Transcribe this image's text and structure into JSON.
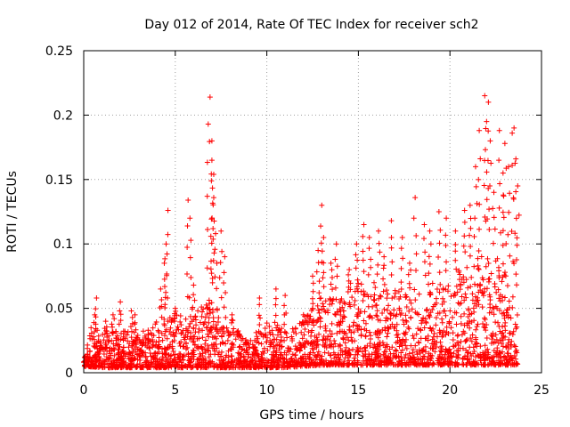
{
  "chart_data": {
    "type": "scatter",
    "title": "Day 012 of 2014, Rate Of TEC Index for receiver sch2",
    "xlabel": "GPS time / hours",
    "ylabel": "ROTI / TECUs",
    "xlim": [
      0,
      25
    ],
    "ylim": [
      0,
      0.25
    ],
    "grid": true,
    "marker": "+",
    "series_color": "#ff0000",
    "xticks": [
      0,
      5,
      10,
      15,
      20,
      25
    ],
    "xtick_labels": [
      "0",
      "5",
      "10",
      "15",
      "20",
      "25"
    ],
    "yticks": [
      0,
      0.05,
      0.1,
      0.15,
      0.2,
      0.25
    ],
    "ytick_labels": [
      "0",
      "0.05",
      "0.1",
      "0.15",
      "0.2",
      "0.25"
    ],
    "data_extent_hours": [
      0,
      23.7
    ],
    "series": [
      {
        "name": "sch2",
        "points": [
          [
            0.4,
            0.035
          ],
          [
            0.6,
            0.045
          ],
          [
            0.7,
            0.058
          ],
          [
            1.2,
            0.04
          ],
          [
            1.6,
            0.045
          ],
          [
            2.0,
            0.055
          ],
          [
            2.6,
            0.048
          ],
          [
            2.8,
            0.045
          ],
          [
            3.5,
            0.025
          ],
          [
            4.2,
            0.065
          ],
          [
            4.4,
            0.085
          ],
          [
            4.5,
            0.1
          ],
          [
            4.6,
            0.126
          ],
          [
            5.0,
            0.05
          ],
          [
            5.7,
            0.134
          ],
          [
            5.8,
            0.12
          ],
          [
            6.0,
            0.068
          ],
          [
            6.8,
            0.193
          ],
          [
            6.9,
            0.214
          ],
          [
            7.0,
            0.18
          ],
          [
            7.0,
            0.165
          ],
          [
            7.1,
            0.154
          ],
          [
            7.1,
            0.136
          ],
          [
            7.2,
            0.108
          ],
          [
            7.5,
            0.11
          ],
          [
            7.7,
            0.09
          ],
          [
            8.1,
            0.045
          ],
          [
            8.5,
            0.03
          ],
          [
            9.6,
            0.058
          ],
          [
            10.5,
            0.065
          ],
          [
            11.0,
            0.06
          ],
          [
            12.0,
            0.045
          ],
          [
            12.5,
            0.075
          ],
          [
            12.8,
            0.095
          ],
          [
            13.0,
            0.13
          ],
          [
            13.1,
            0.105
          ],
          [
            13.5,
            0.085
          ],
          [
            13.8,
            0.1
          ],
          [
            14.5,
            0.08
          ],
          [
            14.9,
            0.1
          ],
          [
            15.3,
            0.115
          ],
          [
            15.6,
            0.105
          ],
          [
            16.1,
            0.11
          ],
          [
            16.4,
            0.09
          ],
          [
            16.8,
            0.118
          ],
          [
            17.4,
            0.105
          ],
          [
            17.8,
            0.085
          ],
          [
            18.1,
            0.136
          ],
          [
            18.6,
            0.115
          ],
          [
            18.9,
            0.11
          ],
          [
            19.4,
            0.125
          ],
          [
            19.8,
            0.12
          ],
          [
            20.3,
            0.11
          ],
          [
            20.8,
            0.126
          ],
          [
            21.1,
            0.13
          ],
          [
            21.4,
            0.16
          ],
          [
            21.6,
            0.188
          ],
          [
            21.9,
            0.215
          ],
          [
            22.0,
            0.195
          ],
          [
            22.1,
            0.21
          ],
          [
            22.2,
            0.18
          ],
          [
            22.4,
            0.14
          ],
          [
            22.7,
            0.188
          ],
          [
            22.9,
            0.155
          ],
          [
            23.0,
            0.178
          ],
          [
            23.2,
            0.16
          ],
          [
            23.4,
            0.186
          ],
          [
            23.5,
            0.19
          ],
          [
            23.6,
            0.166
          ],
          [
            23.7,
            0.145
          ]
        ],
        "envelope": [
          [
            0.0,
            0.005,
            0.022
          ],
          [
            1.0,
            0.004,
            0.03
          ],
          [
            2.0,
            0.004,
            0.035
          ],
          [
            3.0,
            0.004,
            0.03
          ],
          [
            4.0,
            0.004,
            0.04
          ],
          [
            5.0,
            0.004,
            0.045
          ],
          [
            6.0,
            0.004,
            0.045
          ],
          [
            7.0,
            0.004,
            0.06
          ],
          [
            8.0,
            0.004,
            0.04
          ],
          [
            9.0,
            0.004,
            0.025
          ],
          [
            10.0,
            0.004,
            0.04
          ],
          [
            11.0,
            0.004,
            0.035
          ],
          [
            12.0,
            0.005,
            0.04
          ],
          [
            13.0,
            0.006,
            0.06
          ],
          [
            14.0,
            0.006,
            0.06
          ],
          [
            15.0,
            0.006,
            0.07
          ],
          [
            16.0,
            0.006,
            0.07
          ],
          [
            17.0,
            0.006,
            0.065
          ],
          [
            18.0,
            0.006,
            0.065
          ],
          [
            19.0,
            0.006,
            0.07
          ],
          [
            20.0,
            0.006,
            0.07
          ],
          [
            21.0,
            0.006,
            0.09
          ],
          [
            22.0,
            0.006,
            0.1
          ],
          [
            23.0,
            0.006,
            0.085
          ],
          [
            23.7,
            0.006,
            0.05
          ]
        ]
      }
    ]
  }
}
